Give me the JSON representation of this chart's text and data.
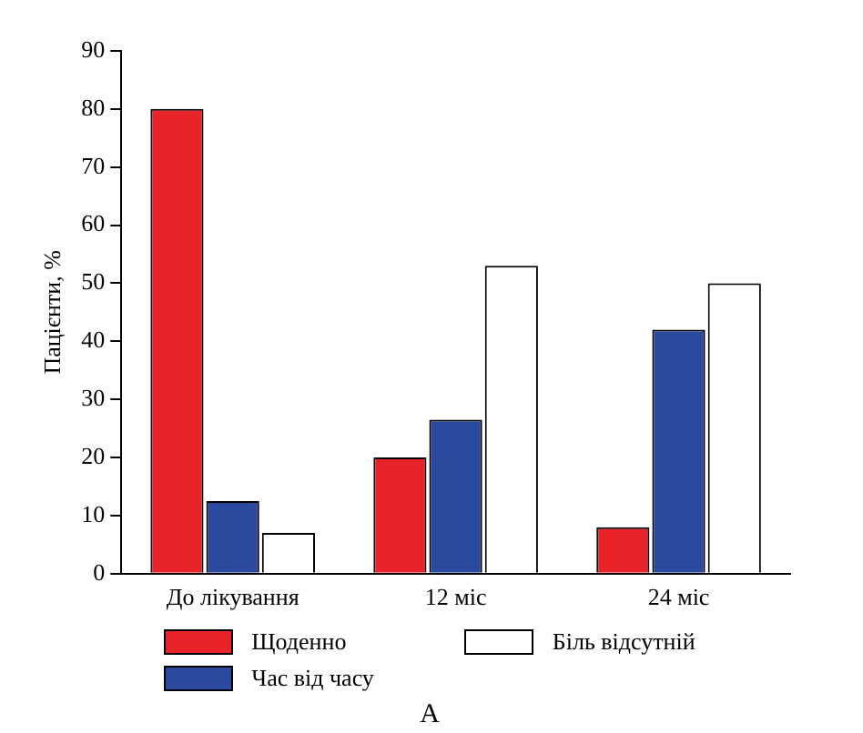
{
  "chart_data": {
    "type": "bar",
    "ylabel": "Пацієнти, %",
    "categories": [
      "До лікування",
      "12 міс",
      "24 міс"
    ],
    "series": [
      {
        "name": "Щоденно",
        "color": "#e8232a",
        "values": [
          80,
          20,
          8
        ]
      },
      {
        "name": "Час від часу",
        "color": "#2b4a9e",
        "values": [
          12.5,
          26.5,
          42
        ]
      },
      {
        "name": "Біль відсутній",
        "color": "#ffffff",
        "values": [
          7,
          53,
          50
        ]
      }
    ],
    "ylim": [
      0,
      90
    ],
    "yticks": [
      0,
      10,
      20,
      30,
      40,
      50,
      60,
      70,
      80,
      90
    ],
    "grid": false,
    "legend": "bottom",
    "annotations": [
      "A"
    ]
  }
}
